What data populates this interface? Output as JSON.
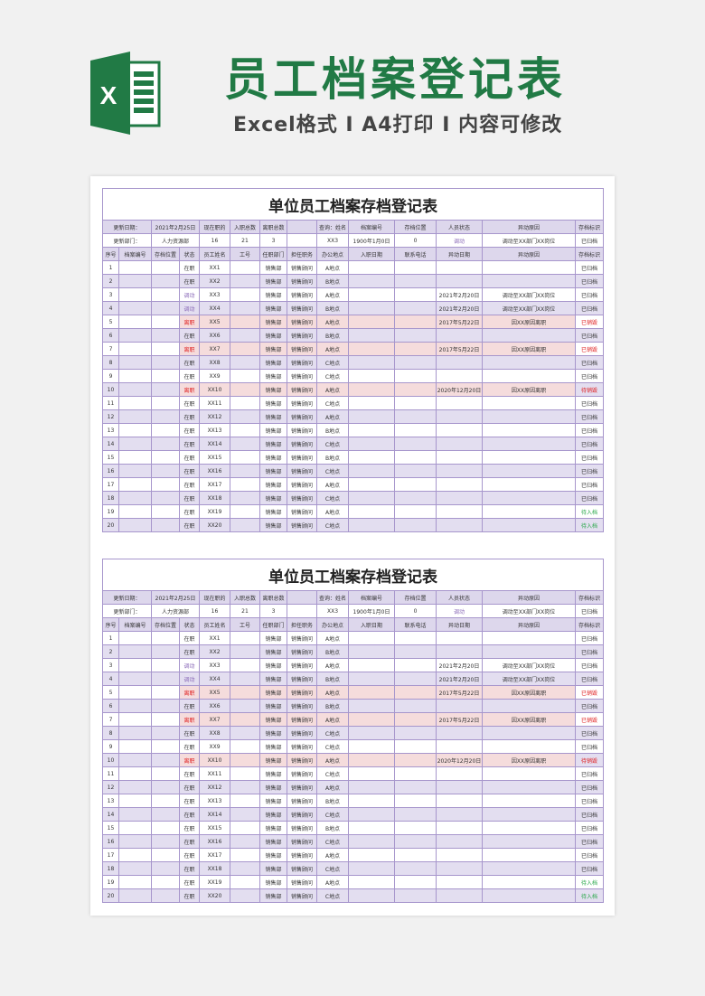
{
  "banner": {
    "title": "员工档案登记表",
    "subtitle": "Excel格式 I A4打印 I 内容可修改",
    "logo_letter": "X",
    "brand_color": "#217a45"
  },
  "sheet": {
    "title": "单位员工档案存档登记表",
    "info_row1": [
      "更新日期：",
      "2021年2月25日",
      "现在职的",
      "入职总数",
      "离职总数",
      "",
      "查询：姓名",
      "档案编号",
      "存档位置",
      "人员状态",
      "异动原因",
      "存档标识"
    ],
    "info_row2": [
      "更新部门：",
      "人力资源部",
      "16",
      "21",
      "3",
      "",
      "XX3",
      "1900年1月0日",
      "0",
      "调动",
      "调动至XX部门XX岗位",
      "已归档"
    ],
    "headers": [
      "序号",
      "档案编号",
      "存档位置",
      "状态",
      "员工姓名",
      "工号",
      "任职部门",
      "担任职务",
      "办公地点",
      "入职日期",
      "联系电话",
      "异动日期",
      "异动原因",
      "存档标识"
    ],
    "rows": [
      [
        "1",
        "",
        "",
        "在职",
        "XX1",
        "",
        "销售部",
        "销售顾问",
        "A地点",
        "",
        "",
        "",
        "",
        "已归档"
      ],
      [
        "2",
        "",
        "",
        "在职",
        "XX2",
        "",
        "销售部",
        "销售顾问",
        "B地点",
        "",
        "",
        "",
        "",
        "已归档"
      ],
      [
        "3",
        "",
        "",
        "调动",
        "XX3",
        "",
        "销售部",
        "销售顾问",
        "A地点",
        "",
        "",
        "2021年2月20日",
        "调动至XX部门XX岗位",
        "已归档"
      ],
      [
        "4",
        "",
        "",
        "调动",
        "XX4",
        "",
        "销售部",
        "销售顾问",
        "B地点",
        "",
        "",
        "2021年2月20日",
        "调动至XX部门XX岗位",
        "已归档"
      ],
      [
        "5",
        "",
        "",
        "离职",
        "XX5",
        "",
        "销售部",
        "销售顾问",
        "A地点",
        "",
        "",
        "2017年5月22日",
        "因XX原因离职",
        "已销毁"
      ],
      [
        "6",
        "",
        "",
        "在职",
        "XX6",
        "",
        "销售部",
        "销售顾问",
        "B地点",
        "",
        "",
        "",
        "",
        "已归档"
      ],
      [
        "7",
        "",
        "",
        "离职",
        "XX7",
        "",
        "销售部",
        "销售顾问",
        "A地点",
        "",
        "",
        "2017年5月22日",
        "因XX原因离职",
        "已销毁"
      ],
      [
        "8",
        "",
        "",
        "在职",
        "XX8",
        "",
        "销售部",
        "销售顾问",
        "C地点",
        "",
        "",
        "",
        "",
        "已归档"
      ],
      [
        "9",
        "",
        "",
        "在职",
        "XX9",
        "",
        "销售部",
        "销售顾问",
        "C地点",
        "",
        "",
        "",
        "",
        "已归档"
      ],
      [
        "10",
        "",
        "",
        "离职",
        "XX10",
        "",
        "销售部",
        "销售顾问",
        "A地点",
        "",
        "",
        "2020年12月20日",
        "因XX原因离职",
        "待销毁"
      ],
      [
        "11",
        "",
        "",
        "在职",
        "XX11",
        "",
        "销售部",
        "销售顾问",
        "C地点",
        "",
        "",
        "",
        "",
        "已归档"
      ],
      [
        "12",
        "",
        "",
        "在职",
        "XX12",
        "",
        "销售部",
        "销售顾问",
        "A地点",
        "",
        "",
        "",
        "",
        "已归档"
      ],
      [
        "13",
        "",
        "",
        "在职",
        "XX13",
        "",
        "销售部",
        "销售顾问",
        "B地点",
        "",
        "",
        "",
        "",
        "已归档"
      ],
      [
        "14",
        "",
        "",
        "在职",
        "XX14",
        "",
        "销售部",
        "销售顾问",
        "C地点",
        "",
        "",
        "",
        "",
        "已归档"
      ],
      [
        "15",
        "",
        "",
        "在职",
        "XX15",
        "",
        "销售部",
        "销售顾问",
        "B地点",
        "",
        "",
        "",
        "",
        "已归档"
      ],
      [
        "16",
        "",
        "",
        "在职",
        "XX16",
        "",
        "销售部",
        "销售顾问",
        "C地点",
        "",
        "",
        "",
        "",
        "已归档"
      ],
      [
        "17",
        "",
        "",
        "在职",
        "XX17",
        "",
        "销售部",
        "销售顾问",
        "A地点",
        "",
        "",
        "",
        "",
        "已归档"
      ],
      [
        "18",
        "",
        "",
        "在职",
        "XX18",
        "",
        "销售部",
        "销售顾问",
        "C地点",
        "",
        "",
        "",
        "",
        "已归档"
      ],
      [
        "19",
        "",
        "",
        "在职",
        "XX19",
        "",
        "销售部",
        "销售顾问",
        "A地点",
        "",
        "",
        "",
        "",
        "待入档"
      ],
      [
        "20",
        "",
        "",
        "在职",
        "XX20",
        "",
        "销售部",
        "销售顾问",
        "C地点",
        "",
        "",
        "",
        "",
        "待入档"
      ]
    ],
    "colors": {
      "border": "#a796cc",
      "stripe": "#e3def0",
      "left_row": "#f5dcdc",
      "red": "#e02020",
      "transfer": "#8a6ab8",
      "pending": "#2aa84a"
    }
  }
}
